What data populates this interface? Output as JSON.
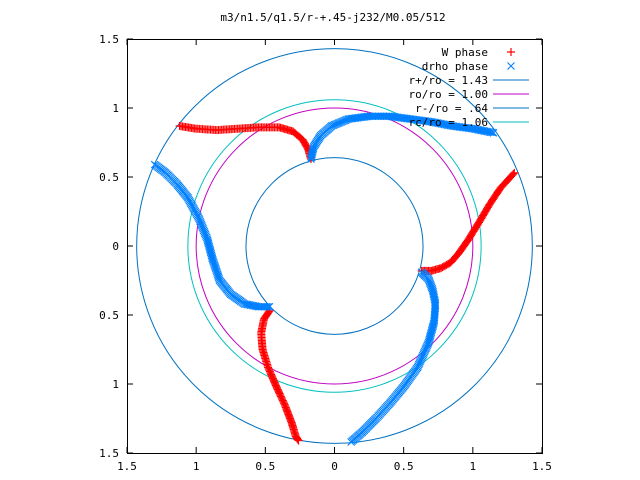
{
  "chart_data": {
    "type": "scatter",
    "title": "m3/n1.5/q1.5/r-+.45-j232/M0.05/512",
    "xlabel": "",
    "ylabel": "",
    "xlim": [
      -1.5,
      1.5
    ],
    "ylim": [
      -1.5,
      1.5
    ],
    "grid": false,
    "legend_placement": "top-right",
    "x_ticks": [
      -1.5,
      -1,
      -0.5,
      0,
      0.5,
      1,
      1.5
    ],
    "x_tick_labels": [
      "1.5",
      "1",
      "0.5",
      "0",
      "0.5",
      "1",
      "1.5"
    ],
    "y_ticks": [
      1.5,
      1,
      0.5,
      0,
      -0.5,
      -1,
      -1.5
    ],
    "y_tick_labels": [
      "1.5",
      "1",
      "0.5",
      "0",
      "0.5",
      "1",
      "1.5"
    ],
    "colors": {
      "w_phase": "#ff0000",
      "drho_phase": "#0080ff",
      "r_plus": "#0070c0",
      "r_o": "#c000c0",
      "r_minus": "#0070c0",
      "r_c": "#00c0c0"
    },
    "circles": [
      {
        "name": "r+/ro = 1.43",
        "radius": 1.43,
        "color_key": "r_plus"
      },
      {
        "name": "ro/ro = 1.00",
        "radius": 1.0,
        "color_key": "r_o"
      },
      {
        "name": "r-/ro = .64",
        "radius": 0.64,
        "color_key": "r_minus"
      },
      {
        "name": "rc/ro = 1.06",
        "radius": 1.06,
        "color_key": "r_c"
      }
    ],
    "series": [
      {
        "name": "W phase",
        "marker": "+",
        "color_key": "w_phase",
        "arms": [
          [
            [
              -0.17,
              0.63
            ],
            [
              -0.19,
              0.7
            ],
            [
              -0.23,
              0.77
            ],
            [
              -0.3,
              0.83
            ],
            [
              -0.4,
              0.86
            ],
            [
              -0.55,
              0.86
            ],
            [
              -0.7,
              0.85
            ],
            [
              -0.85,
              0.84
            ],
            [
              -1.0,
              0.85
            ],
            [
              -1.12,
              0.87
            ]
          ],
          [
            [
              0.63,
              -0.18
            ],
            [
              0.7,
              -0.18
            ],
            [
              0.77,
              -0.16
            ],
            [
              0.84,
              -0.12
            ],
            [
              0.9,
              -0.05
            ],
            [
              0.97,
              0.05
            ],
            [
              1.05,
              0.18
            ],
            [
              1.12,
              0.3
            ],
            [
              1.2,
              0.42
            ],
            [
              1.3,
              0.53
            ]
          ],
          [
            [
              -0.47,
              -0.47
            ],
            [
              -0.51,
              -0.53
            ],
            [
              -0.53,
              -0.63
            ],
            [
              -0.52,
              -0.75
            ],
            [
              -0.48,
              -0.88
            ],
            [
              -0.42,
              -1.02
            ],
            [
              -0.36,
              -1.15
            ],
            [
              -0.31,
              -1.28
            ],
            [
              -0.28,
              -1.38
            ],
            [
              -0.26,
              -1.41
            ]
          ]
        ]
      },
      {
        "name": "drho phase",
        "marker": "x",
        "color_key": "drho_phase",
        "arms": [
          [
            [
              -0.47,
              -0.44
            ],
            [
              -0.55,
              -0.44
            ],
            [
              -0.65,
              -0.42
            ],
            [
              -0.75,
              -0.35
            ],
            [
              -0.83,
              -0.25
            ],
            [
              -0.88,
              -0.1
            ],
            [
              -0.92,
              0.05
            ],
            [
              -0.98,
              0.2
            ],
            [
              -1.06,
              0.35
            ],
            [
              -1.14,
              0.45
            ],
            [
              -1.22,
              0.53
            ],
            [
              -1.3,
              0.59
            ]
          ],
          [
            [
              -0.17,
              0.63
            ],
            [
              -0.15,
              0.72
            ],
            [
              -0.1,
              0.8
            ],
            [
              -0.02,
              0.87
            ],
            [
              0.1,
              0.92
            ],
            [
              0.25,
              0.94
            ],
            [
              0.4,
              0.94
            ],
            [
              0.55,
              0.92
            ],
            [
              0.7,
              0.9
            ],
            [
              0.85,
              0.87
            ],
            [
              1.0,
              0.85
            ],
            [
              1.15,
              0.82
            ]
          ],
          [
            [
              0.63,
              -0.19
            ],
            [
              0.68,
              -0.24
            ],
            [
              0.71,
              -0.32
            ],
            [
              0.73,
              -0.42
            ],
            [
              0.72,
              -0.55
            ],
            [
              0.68,
              -0.7
            ],
            [
              0.6,
              -0.88
            ],
            [
              0.5,
              -1.02
            ],
            [
              0.4,
              -1.14
            ],
            [
              0.3,
              -1.25
            ],
            [
              0.2,
              -1.35
            ],
            [
              0.12,
              -1.42
            ]
          ]
        ]
      }
    ]
  }
}
